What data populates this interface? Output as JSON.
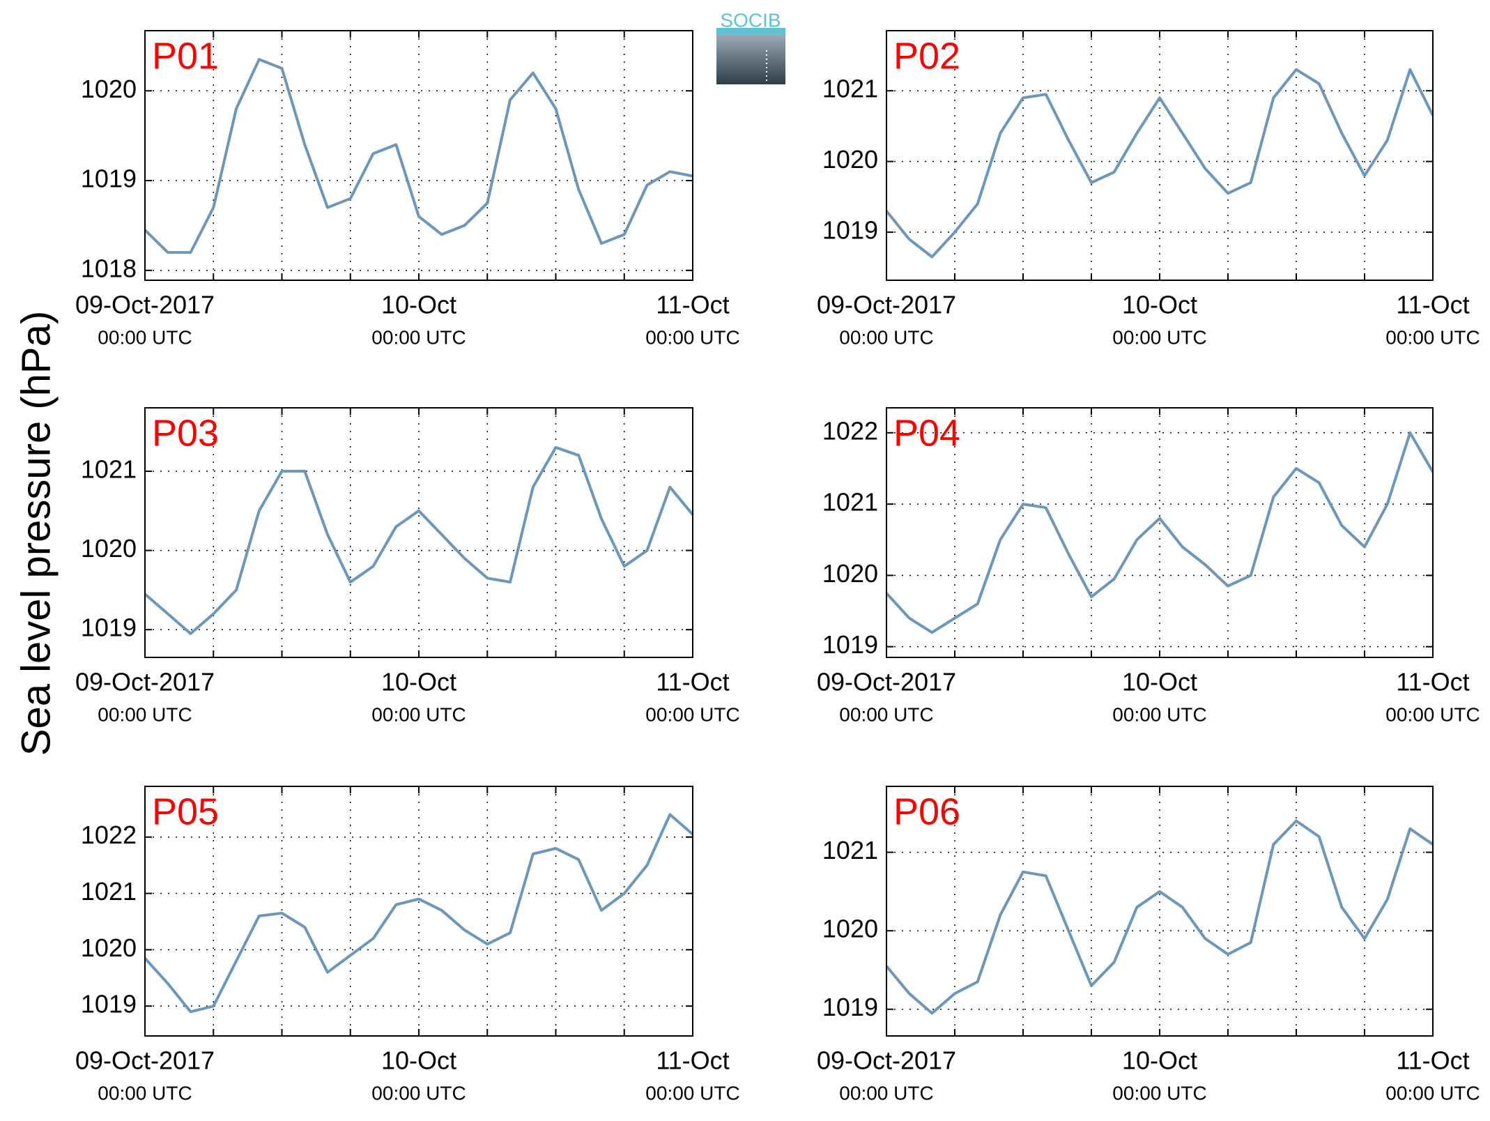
{
  "ylabel": "Sea level pressure (hPa)",
  "logo": "SOCIB",
  "chart_data": [
    {
      "type": "line",
      "title": "P01",
      "color": "#6b97bb",
      "x": [
        0,
        2,
        4,
        6,
        8,
        10,
        12,
        14,
        16,
        18,
        20,
        22,
        24,
        26,
        28,
        30,
        32,
        34,
        36,
        38,
        40,
        42,
        44,
        46,
        48
      ],
      "values": [
        1018.45,
        1018.2,
        1018.2,
        1018.7,
        1019.8,
        1020.35,
        1020.25,
        1019.4,
        1018.7,
        1018.8,
        1019.3,
        1019.4,
        1018.6,
        1018.4,
        1018.5,
        1018.75,
        1019.9,
        1020.2,
        1019.8,
        1018.9,
        1018.3,
        1018.4,
        1018.95,
        1019.1,
        1019.05
      ],
      "xlim": [
        0,
        48
      ],
      "xticks": [
        {
          "value": 0,
          "label": "09-Oct-2017",
          "sublabel": "00:00 UTC"
        },
        {
          "value": 24,
          "label": "10-Oct",
          "sublabel": "00:00 UTC"
        },
        {
          "value": 48,
          "label": "11-Oct",
          "sublabel": "00:00 UTC"
        }
      ],
      "xminorticks": [
        6,
        12,
        18,
        30,
        36,
        42
      ],
      "ylim": [
        1017.89,
        1020.67
      ],
      "yticks": [
        1018,
        1019,
        1020
      ],
      "grid": true
    },
    {
      "type": "line",
      "title": "P02",
      "color": "#6b97bb",
      "x": [
        0,
        2,
        4,
        6,
        8,
        10,
        12,
        14,
        16,
        18,
        20,
        22,
        24,
        26,
        28,
        30,
        32,
        34,
        36,
        38,
        40,
        42,
        44,
        46,
        48
      ],
      "values": [
        1019.3,
        1018.9,
        1018.65,
        1019.0,
        1019.4,
        1020.4,
        1020.9,
        1020.95,
        1020.3,
        1019.7,
        1019.85,
        1020.4,
        1020.9,
        1020.4,
        1019.9,
        1019.55,
        1019.7,
        1020.9,
        1021.3,
        1021.1,
        1020.4,
        1019.8,
        1020.3,
        1021.3,
        1020.65
      ],
      "xlim": [
        0,
        48
      ],
      "xticks": [
        {
          "value": 0,
          "label": "09-Oct-2017",
          "sublabel": "00:00 UTC"
        },
        {
          "value": 24,
          "label": "10-Oct",
          "sublabel": "00:00 UTC"
        },
        {
          "value": 48,
          "label": "11-Oct",
          "sublabel": "00:00 UTC"
        }
      ],
      "xminorticks": [
        6,
        12,
        18,
        30,
        36,
        42
      ],
      "ylim": [
        1018.32,
        1021.85
      ],
      "yticks": [
        1019,
        1020,
        1021
      ],
      "grid": true
    },
    {
      "type": "line",
      "title": "P03",
      "color": "#6b97bb",
      "x": [
        0,
        2,
        4,
        6,
        8,
        10,
        12,
        14,
        16,
        18,
        20,
        22,
        24,
        26,
        28,
        30,
        32,
        34,
        36,
        38,
        40,
        42,
        44,
        46,
        48
      ],
      "values": [
        1019.45,
        1019.2,
        1018.95,
        1019.2,
        1019.5,
        1020.5,
        1021.0,
        1021.0,
        1020.2,
        1019.6,
        1019.8,
        1020.3,
        1020.5,
        1020.2,
        1019.9,
        1019.65,
        1019.6,
        1020.8,
        1021.3,
        1021.2,
        1020.4,
        1019.8,
        1020.0,
        1020.8,
        1020.45
      ],
      "xlim": [
        0,
        48
      ],
      "xticks": [
        {
          "value": 0,
          "label": "09-Oct-2017",
          "sublabel": "00:00 UTC"
        },
        {
          "value": 24,
          "label": "10-Oct",
          "sublabel": "00:00 UTC"
        },
        {
          "value": 48,
          "label": "11-Oct",
          "sublabel": "00:00 UTC"
        }
      ],
      "xminorticks": [
        6,
        12,
        18,
        30,
        36,
        42
      ],
      "ylim": [
        1018.65,
        1021.8
      ],
      "yticks": [
        1019,
        1020,
        1021
      ],
      "grid": true
    },
    {
      "type": "line",
      "title": "P04",
      "color": "#6b97bb",
      "x": [
        0,
        2,
        4,
        6,
        8,
        10,
        12,
        14,
        16,
        18,
        20,
        22,
        24,
        26,
        28,
        30,
        32,
        34,
        36,
        38,
        40,
        42,
        44,
        46,
        48
      ],
      "values": [
        1019.75,
        1019.4,
        1019.2,
        1019.4,
        1019.6,
        1020.5,
        1021.0,
        1020.95,
        1020.3,
        1019.7,
        1019.95,
        1020.5,
        1020.8,
        1020.4,
        1020.15,
        1019.85,
        1020.0,
        1021.1,
        1021.5,
        1021.3,
        1020.7,
        1020.4,
        1021.0,
        1022.0,
        1021.45
      ],
      "xlim": [
        0,
        48
      ],
      "xticks": [
        {
          "value": 0,
          "label": "09-Oct-2017",
          "sublabel": "00:00 UTC"
        },
        {
          "value": 24,
          "label": "10-Oct",
          "sublabel": "00:00 UTC"
        },
        {
          "value": 48,
          "label": "11-Oct",
          "sublabel": "00:00 UTC"
        }
      ],
      "xminorticks": [
        6,
        12,
        18,
        30,
        36,
        42
      ],
      "ylim": [
        1018.85,
        1022.35
      ],
      "yticks": [
        1019,
        1020,
        1021,
        1022
      ],
      "grid": true
    },
    {
      "type": "line",
      "title": "P05",
      "color": "#6b97bb",
      "x": [
        0,
        2,
        4,
        6,
        8,
        10,
        12,
        14,
        16,
        18,
        20,
        22,
        24,
        26,
        28,
        30,
        32,
        34,
        36,
        38,
        40,
        42,
        44,
        46,
        48
      ],
      "values": [
        1019.85,
        1019.4,
        1018.9,
        1019.0,
        1019.8,
        1020.6,
        1020.65,
        1020.4,
        1019.6,
        1019.9,
        1020.2,
        1020.8,
        1020.9,
        1020.7,
        1020.35,
        1020.1,
        1020.3,
        1021.7,
        1021.8,
        1021.6,
        1020.7,
        1021.0,
        1021.5,
        1022.4,
        1022.05
      ],
      "xlim": [
        0,
        48
      ],
      "xticks": [
        {
          "value": 0,
          "label": "09-Oct-2017",
          "sublabel": "00:00 UTC"
        },
        {
          "value": 24,
          "label": "10-Oct",
          "sublabel": "00:00 UTC"
        },
        {
          "value": 48,
          "label": "11-Oct",
          "sublabel": "00:00 UTC"
        }
      ],
      "xminorticks": [
        6,
        12,
        18,
        30,
        36,
        42
      ],
      "ylim": [
        1018.47,
        1022.9
      ],
      "yticks": [
        1019,
        1020,
        1021,
        1022
      ],
      "grid": true
    },
    {
      "type": "line",
      "title": "P06",
      "color": "#6b97bb",
      "x": [
        0,
        2,
        4,
        6,
        8,
        10,
        12,
        14,
        16,
        18,
        20,
        22,
        24,
        26,
        28,
        30,
        32,
        34,
        36,
        38,
        40,
        42,
        44,
        46,
        48
      ],
      "values": [
        1019.55,
        1019.2,
        1018.95,
        1019.2,
        1019.35,
        1020.2,
        1020.75,
        1020.7,
        1020.0,
        1019.3,
        1019.6,
        1020.3,
        1020.5,
        1020.3,
        1019.9,
        1019.7,
        1019.85,
        1021.1,
        1021.4,
        1021.2,
        1020.3,
        1019.9,
        1020.4,
        1021.3,
        1021.1
      ],
      "xlim": [
        0,
        48
      ],
      "xticks": [
        {
          "value": 0,
          "label": "09-Oct-2017",
          "sublabel": "00:00 UTC"
        },
        {
          "value": 24,
          "label": "10-Oct",
          "sublabel": "00:00 UTC"
        },
        {
          "value": 48,
          "label": "11-Oct",
          "sublabel": "00:00 UTC"
        }
      ],
      "xminorticks": [
        6,
        12,
        18,
        30,
        36,
        42
      ],
      "ylim": [
        1018.66,
        1021.84
      ],
      "yticks": [
        1019,
        1020,
        1021
      ],
      "grid": true
    }
  ]
}
